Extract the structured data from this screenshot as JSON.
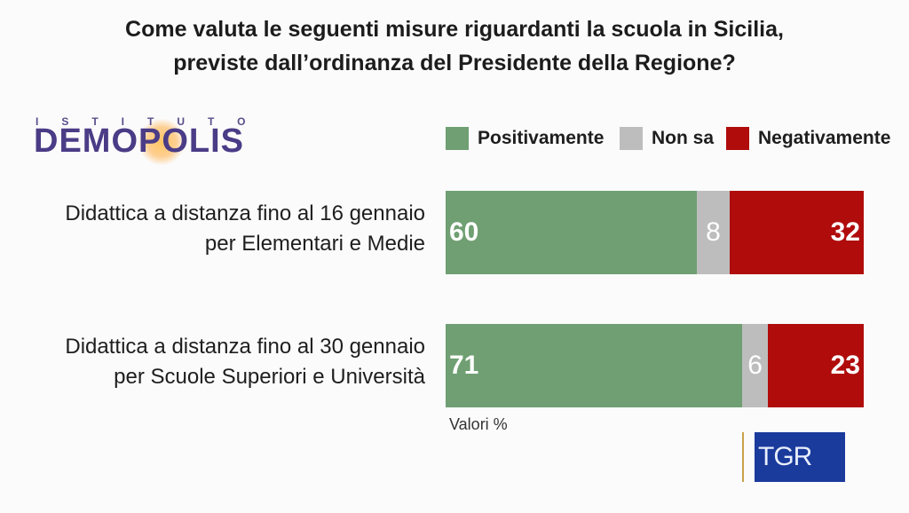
{
  "title": {
    "line1": "Come valuta le seguenti misure riguardanti la scuola in Sicilia,",
    "line2": "previste dall’ordinanza del Presidente della Regione?"
  },
  "logo": {
    "top": "ISTITUTO",
    "main": "DEMOPOLIS"
  },
  "note": "Valori %",
  "broadcaster": "TGR",
  "colors": {
    "positive": "#6f9f72",
    "unknown": "#bdbdbd",
    "negative": "#b00c0c"
  },
  "chart_data": {
    "type": "bar",
    "orientation": "horizontal",
    "stacked": true,
    "categories": [
      {
        "line1": "Didattica a distanza fino al 16 gennaio",
        "line2": "per Elementari e Medie"
      },
      {
        "line1": "Didattica a distanza fino al 30 gennaio",
        "line2": "per Scuole Superiori e Università"
      }
    ],
    "series": [
      {
        "name": "Positivamente",
        "values": [
          60,
          71
        ]
      },
      {
        "name": "Non sa",
        "values": [
          8,
          6
        ]
      },
      {
        "name": "Negativamente",
        "values": [
          32,
          23
        ]
      }
    ],
    "xlim": [
      0,
      100
    ],
    "legend": "top"
  }
}
